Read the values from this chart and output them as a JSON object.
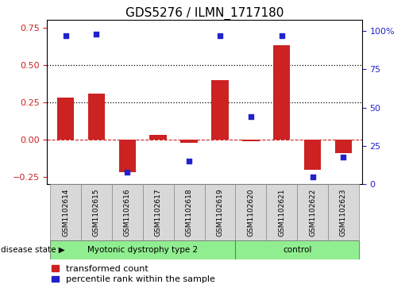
{
  "title": "GDS5276 / ILMN_1717180",
  "samples": [
    "GSM1102614",
    "GSM1102615",
    "GSM1102616",
    "GSM1102617",
    "GSM1102618",
    "GSM1102619",
    "GSM1102620",
    "GSM1102621",
    "GSM1102622",
    "GSM1102623"
  ],
  "transformed_count": [
    0.28,
    0.31,
    -0.22,
    0.03,
    -0.02,
    0.4,
    -0.01,
    0.63,
    -0.2,
    -0.09
  ],
  "percentile_rank": [
    97,
    98,
    8,
    null,
    15,
    97,
    44,
    97,
    5,
    18
  ],
  "ylim_left": [
    -0.3,
    0.8
  ],
  "ylim_right": [
    0,
    107
  ],
  "yticks_left": [
    -0.25,
    0.0,
    0.25,
    0.5,
    0.75
  ],
  "yticks_right": [
    0,
    25,
    50,
    75,
    100
  ],
  "hlines": [
    0.25,
    0.5
  ],
  "disease_groups": [
    {
      "label": "Myotonic dystrophy type 2",
      "start": 0,
      "end": 6,
      "color": "#90EE90"
    },
    {
      "label": "control",
      "start": 6,
      "end": 10,
      "color": "#90EE90"
    }
  ],
  "bar_color": "#CC2222",
  "scatter_color": "#2222CC",
  "bar_width": 0.55,
  "zero_line_color": "#CC2222",
  "zero_line_style": "--",
  "dotted_line_color": "#000000",
  "label_transformed": "transformed count",
  "label_percentile": "percentile rank within the sample",
  "disease_label": "disease state",
  "bg_plot": "#FFFFFF",
  "cell_color": "#D8D8D8",
  "title_fontsize": 11,
  "tick_fontsize": 8,
  "legend_fontsize": 8,
  "sample_fontsize": 6.5
}
